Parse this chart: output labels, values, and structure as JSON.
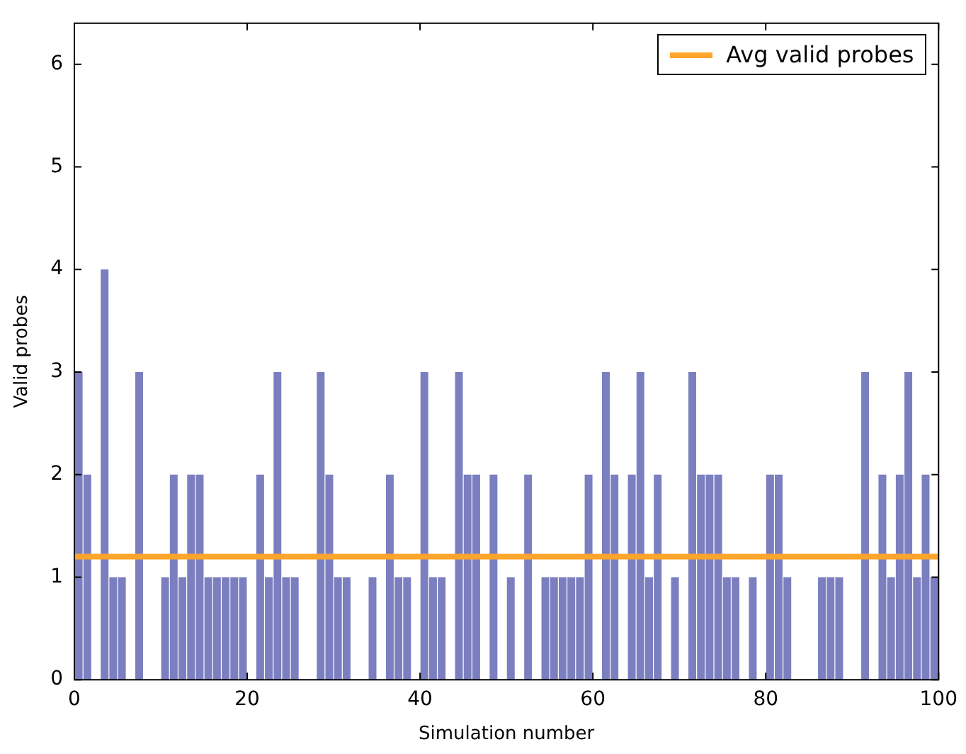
{
  "chart_data": {
    "type": "histogram",
    "xlabel": "Simulation number",
    "ylabel": "Valid probes",
    "bins": [
      0,
      1,
      2,
      3,
      4,
      5,
      6,
      7,
      8,
      9,
      10,
      11,
      12,
      13,
      14,
      15,
      16,
      17,
      18,
      19,
      20,
      21,
      22,
      23,
      24,
      25,
      26,
      27,
      28,
      29,
      30,
      31,
      32,
      33,
      34,
      35,
      36,
      37,
      38,
      39,
      40,
      41,
      42,
      43,
      44,
      45,
      46,
      47,
      48,
      49,
      50,
      51,
      52,
      53,
      54,
      55,
      56,
      57,
      58,
      59,
      60,
      61,
      62,
      63,
      64,
      65,
      66,
      67,
      68,
      69,
      70,
      71,
      72,
      73,
      74,
      75,
      76,
      77,
      78,
      79,
      80,
      81,
      82,
      83,
      84,
      85,
      86,
      87,
      88,
      89,
      90,
      91,
      92,
      93,
      94,
      95,
      96,
      97,
      98,
      99,
      100
    ],
    "values": [
      3,
      2,
      0,
      4,
      1,
      1,
      0,
      3,
      0,
      0,
      1,
      2,
      1,
      2,
      2,
      1,
      1,
      1,
      1,
      1,
      0,
      2,
      1,
      3,
      1,
      1,
      0,
      0,
      3,
      2,
      1,
      1,
      0,
      0,
      1,
      0,
      2,
      1,
      1,
      0,
      3,
      1,
      1,
      0,
      3,
      2,
      2,
      0,
      2,
      0,
      1,
      0,
      2,
      0,
      1,
      1,
      1,
      1,
      1,
      2,
      0,
      3,
      2,
      0,
      2,
      3,
      1,
      2,
      0,
      1,
      0,
      3,
      2,
      2,
      2,
      1,
      1,
      0,
      1,
      0,
      2,
      2,
      1,
      0,
      0,
      0,
      1,
      1,
      1,
      0,
      0,
      3,
      0,
      2,
      1,
      2,
      3,
      1,
      2,
      1
    ],
    "color": "#7b7fbf",
    "xlim": [
      0,
      100
    ],
    "xticks": [
      0,
      20,
      40,
      60,
      80,
      100
    ],
    "ylim": [
      0,
      6.4
    ],
    "yticks": [
      0,
      1,
      2,
      3,
      4,
      5,
      6
    ],
    "ref_lines": [
      {
        "axis": "y",
        "value": 1.2,
        "label": "Avg valid probes",
        "color": "#ffa52c"
      }
    ],
    "grid": false,
    "legend": "top right"
  }
}
